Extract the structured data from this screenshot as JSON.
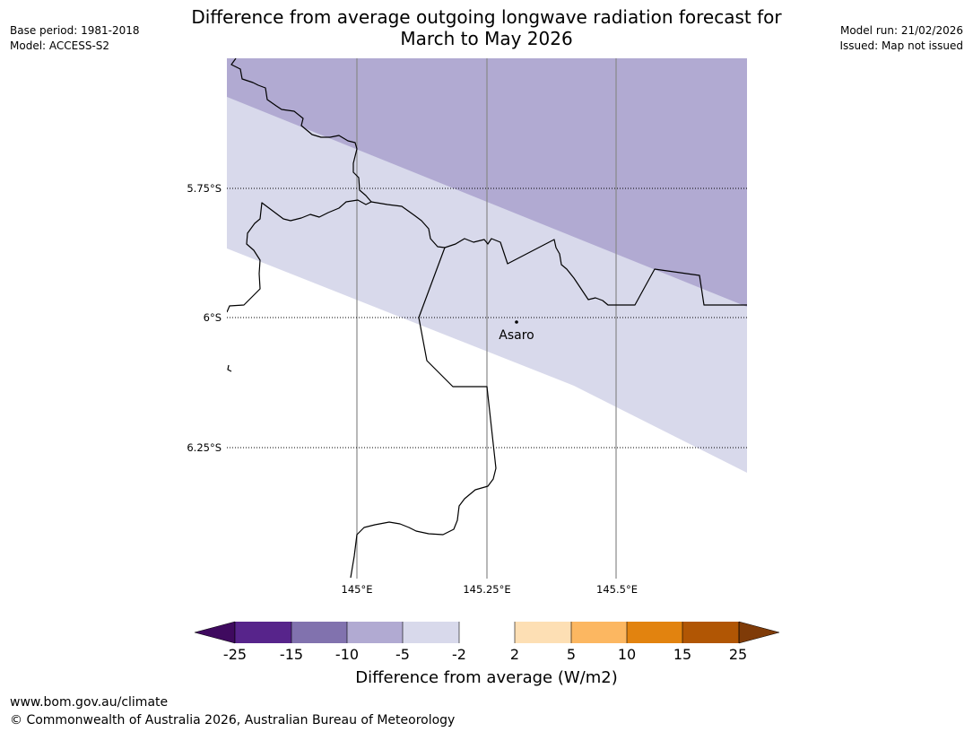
{
  "title": {
    "line1": "Difference from average outgoing longwave radiation forecast for",
    "line2": "March to May 2026"
  },
  "meta_left": {
    "base_period": "Base period: 1981-2018",
    "model": "Model: ACCESS-S2"
  },
  "meta_right": {
    "model_run": "Model run: 21/02/2026",
    "issued": "Issued: Map not issued"
  },
  "map": {
    "lat_labels": [
      "5.75°S",
      "6°S",
      "6.25°S"
    ],
    "lon_labels": [
      "145°E",
      "145.25°E",
      "145.5°E"
    ],
    "place_name": "Asaro",
    "anomaly_bands": [
      {
        "range": "-10 to -5",
        "color": "#b1aad2"
      },
      {
        "range": "-5 to -2",
        "color": "#d8d9eb"
      },
      {
        "range": "-2 to 2",
        "color": "#ffffff"
      }
    ]
  },
  "colorbar": {
    "title": "Difference from average (W/m2)",
    "ticks": [
      "-25",
      "-15",
      "-10",
      "-5",
      "-2",
      "2",
      "5",
      "10",
      "15",
      "25"
    ],
    "colors": [
      "#3f0a5f",
      "#57248b",
      "#8172ae",
      "#b1aad2",
      "#d8d9eb",
      "#ffffff",
      "#fddfb4",
      "#fcb761",
      "#e2830f",
      "#b15604",
      "#7f3b08"
    ]
  },
  "footer": {
    "url": "www.bom.gov.au/climate",
    "copyright": "© Commonwealth of Australia 2026, Australian Bureau of Meteorology"
  }
}
